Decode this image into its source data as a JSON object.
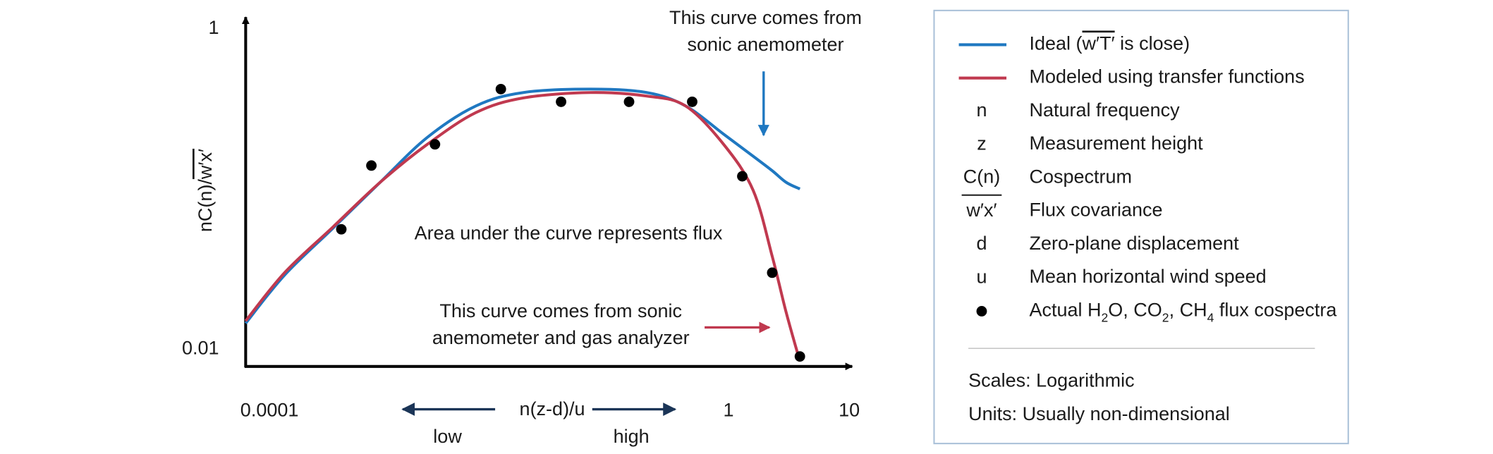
{
  "chart_data": {
    "type": "line",
    "log_x": true,
    "log_y": true,
    "xlim": [
      0.0001,
      10.2
    ],
    "ylim": [
      0.0078,
      1.15
    ],
    "xticks": [
      0.0001,
      1,
      10
    ],
    "yticks": [
      0.01,
      1
    ],
    "y_label_parts": [
      {
        "text": "nC(n)/"
      },
      {
        "text": "w′x′",
        "style": "overline"
      }
    ],
    "x_label": "n(z-d)/u",
    "x_low": "low",
    "x_high": "high",
    "series": [
      {
        "type": "line",
        "color": "#1f78c1",
        "x": [
          0.0001,
          0.00021,
          0.00053,
          0.0013,
          0.0032,
          0.0081,
          0.02,
          0.072,
          0.21,
          0.44,
          0.91,
          1.6,
          2.3,
          3.0,
          3.9
        ],
        "values": [
          0.0145,
          0.029,
          0.057,
          0.11,
          0.21,
          0.33,
          0.4,
          0.42,
          0.4,
          0.33,
          0.22,
          0.16,
          0.13,
          0.11,
          0.1
        ]
      },
      {
        "type": "line",
        "color": "#c0394f",
        "x": [
          0.0001,
          0.00021,
          0.00053,
          0.0013,
          0.0032,
          0.0081,
          0.02,
          0.072,
          0.21,
          0.44,
          0.91,
          1.6,
          2.3,
          3.0,
          3.9
        ],
        "values": [
          0.015,
          0.03,
          0.058,
          0.11,
          0.19,
          0.3,
          0.37,
          0.4,
          0.38,
          0.33,
          0.19,
          0.098,
          0.038,
          0.017,
          0.0084
        ]
      },
      {
        "type": "scatter",
        "color": "#000000",
        "x": [
          0.00062,
          0.0011,
          0.0037,
          0.013,
          0.041,
          0.15,
          0.5,
          1.3,
          2.3,
          3.9
        ],
        "values": [
          0.056,
          0.14,
          0.19,
          0.42,
          0.35,
          0.35,
          0.35,
          0.12,
          0.03,
          0.009
        ]
      }
    ],
    "annotations": [
      {
        "lines": [
          "This curve comes from",
          "sonic anemometer"
        ]
      },
      {
        "lines": [
          "Area under the curve represents flux"
        ]
      },
      {
        "lines": [
          "This curve comes from sonic",
          "anemometer and gas analyzer"
        ]
      }
    ],
    "legend": [
      {
        "marker": "line",
        "series": 0,
        "parts": [
          {
            "text": "Ideal ("
          },
          {
            "text": "w′T′",
            "style": "overline"
          },
          {
            "text": " is close)"
          }
        ]
      },
      {
        "marker": "line",
        "series": 1,
        "parts": [
          {
            "text": "Modeled using transfer functions"
          }
        ]
      },
      {
        "symbol": "n",
        "parts": [
          {
            "text": "Natural frequency"
          }
        ]
      },
      {
        "symbol": "z",
        "parts": [
          {
            "text": "Measurement height"
          }
        ]
      },
      {
        "symbol": "C(n)",
        "parts": [
          {
            "text": "Cospectrum"
          }
        ]
      },
      {
        "symbol": "w′x′",
        "parts": [
          {
            "text": "Flux covariance"
          }
        ]
      },
      {
        "symbol": "d",
        "parts": [
          {
            "text": "Zero-plane displacement"
          }
        ]
      },
      {
        "symbol": "u",
        "parts": [
          {
            "text": "Mean horizontal wind speed"
          }
        ]
      },
      {
        "marker": "dot",
        "series": 2,
        "parts": [
          {
            "text": "Actual H"
          },
          {
            "text": "2",
            "style": "sub"
          },
          {
            "text": "O, CO"
          },
          {
            "text": "2",
            "style": "sub"
          },
          {
            "text": ", CH"
          },
          {
            "text": "4",
            "style": "sub"
          },
          {
            "text": " flux cospectra"
          }
        ]
      }
    ],
    "notes": [
      "Scales: Logarithmic",
      "Units: Usually non-dimensional"
    ]
  }
}
